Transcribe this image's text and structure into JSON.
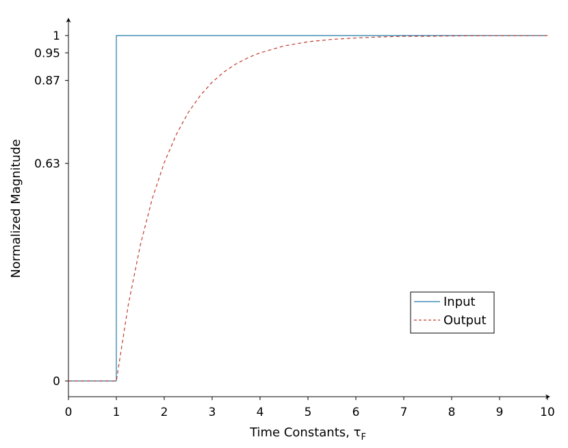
{
  "chart_data": {
    "type": "line",
    "xlabel": "Time Constants, ",
    "xlabel_symbol": "τ",
    "xlabel_subscript": "F",
    "ylabel": "Normalized Magnitude",
    "xlim": [
      0,
      10
    ],
    "ylim": [
      -0.045,
      1.0
    ],
    "x_ticks": [
      0,
      1,
      2,
      3,
      4,
      5,
      6,
      7,
      8,
      9,
      10
    ],
    "x_tick_labels": [
      "0",
      "1",
      "2",
      "3",
      "4",
      "5",
      "6",
      "7",
      "8",
      "9",
      "10"
    ],
    "y_ticks": [
      0,
      0.63,
      0.87,
      0.95,
      1
    ],
    "y_tick_labels": [
      "0",
      "0.63",
      "0.87",
      "0.95",
      "1"
    ],
    "grid": false,
    "legend_position": "lower-right",
    "series": [
      {
        "name": "Input",
        "color": "#1f77a4",
        "style": "solid",
        "x": [
          0,
          1,
          1,
          10
        ],
        "y": [
          0,
          0,
          1,
          1
        ]
      },
      {
        "name": "Output",
        "color": "#c0392b",
        "style": "dashed",
        "x": [
          0,
          1,
          1.25,
          1.5,
          1.75,
          2,
          2.25,
          2.5,
          2.75,
          3,
          3.25,
          3.5,
          3.75,
          4,
          4.5,
          5,
          5.5,
          6,
          6.5,
          7,
          7.5,
          8,
          8.5,
          9,
          9.5,
          10
        ],
        "y": [
          0,
          0,
          0.221,
          0.393,
          0.528,
          0.632,
          0.713,
          0.777,
          0.826,
          0.865,
          0.895,
          0.918,
          0.936,
          0.95,
          0.97,
          0.982,
          0.989,
          0.993,
          0.996,
          0.998,
          0.998,
          0.999,
          0.9995,
          0.9997,
          0.9998,
          0.9999
        ]
      }
    ]
  }
}
